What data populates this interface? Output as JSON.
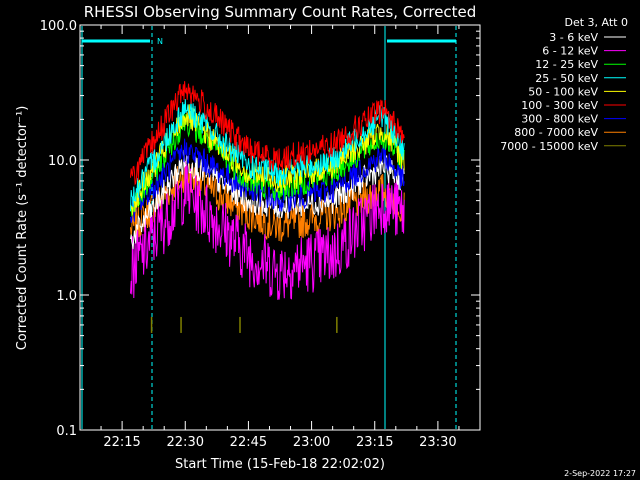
{
  "chart_data": {
    "type": "line",
    "title": "RHESSI Observing Summary Count Rates, Corrected",
    "xlabel": "Start Time (15-Feb-18 22:02:02)",
    "ylabel": "Corrected Count Rate (s⁻¹ detector⁻¹)",
    "yscale": "log",
    "ylim": [
      0.1,
      100
    ],
    "xlim": [
      "22:05",
      "23:40"
    ],
    "x_ticks": [
      "22:15",
      "22:30",
      "22:45",
      "23:00",
      "23:15",
      "23:30"
    ],
    "y_ticks": [
      "0.1",
      "1.0",
      "10.0",
      "100.0"
    ],
    "legend_title": "Det 3, Att 0",
    "legend_position": "outside-right",
    "footer_date": "2-Sep-2022 17:27",
    "background": "#000000",
    "attenuator_marker": "N",
    "series": [
      {
        "name": "3 - 6 keV",
        "color": "#ffffff",
        "x": [
          "22:17",
          "22:30",
          "22:45",
          "22:52",
          "23:05",
          "23:17",
          "23:22"
        ],
        "values": [
          2.5,
          10,
          5,
          4.5,
          5,
          9,
          7
        ]
      },
      {
        "name": "6 - 12 keV",
        "color": "#ff00ff",
        "x": [
          "22:17",
          "22:30",
          "22:45",
          "22:52",
          "23:05",
          "23:17",
          "23:22"
        ],
        "values": [
          1.5,
          6,
          2,
          1.5,
          2,
          5,
          4
        ]
      },
      {
        "name": "12 - 25 keV",
        "color": "#00ff00",
        "x": [
          "22:17",
          "22:30",
          "22:45",
          "22:52",
          "23:05",
          "23:17",
          "23:22"
        ],
        "values": [
          4,
          20,
          7,
          6,
          8,
          15,
          10
        ]
      },
      {
        "name": "25 - 50 keV",
        "color": "#00ffff",
        "x": [
          "22:17",
          "22:30",
          "22:45",
          "22:52",
          "23:05",
          "23:17",
          "23:22"
        ],
        "values": [
          5,
          25,
          9,
          8,
          10,
          22,
          12
        ]
      },
      {
        "name": "50 - 100 keV",
        "color": "#ffff00",
        "x": [
          "22:17",
          "22:30",
          "22:45",
          "22:52",
          "23:05",
          "23:17",
          "23:22"
        ],
        "values": [
          4.5,
          22,
          8,
          7,
          9,
          17,
          10
        ]
      },
      {
        "name": "100 - 300 keV",
        "color": "#ff0000",
        "x": [
          "22:17",
          "22:30",
          "22:45",
          "22:52",
          "23:05",
          "23:17",
          "23:22"
        ],
        "values": [
          7,
          35,
          12,
          10,
          13,
          24,
          15
        ]
      },
      {
        "name": "300 - 800 keV",
        "color": "#0000ff",
        "x": [
          "22:17",
          "22:30",
          "22:45",
          "22:52",
          "23:05",
          "23:17",
          "23:22"
        ],
        "values": [
          4,
          12,
          6,
          5,
          6,
          11,
          7
        ]
      },
      {
        "name": "800 - 7000 keV",
        "color": "#ff8000",
        "x": [
          "22:17",
          "22:30",
          "22:45",
          "22:52",
          "23:05",
          "23:17",
          "23:22"
        ],
        "values": [
          3,
          8,
          4,
          3.2,
          4,
          6,
          4.5
        ]
      },
      {
        "name": "7000 - 15000 keV",
        "color": "#808000",
        "x": [
          "22:22",
          "22:29",
          "22:43",
          "23:06"
        ],
        "values": [
          0.6,
          0.6,
          0.6,
          0.6
        ]
      }
    ]
  }
}
